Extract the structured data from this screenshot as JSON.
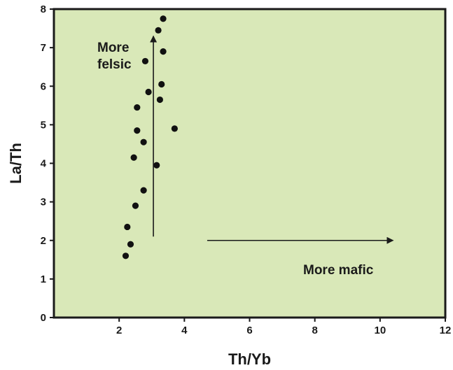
{
  "chart_data": {
    "type": "scatter",
    "title": "",
    "xlabel": "Th/Yb",
    "ylabel": "La/Th",
    "xlim": [
      0,
      12
    ],
    "ylim": [
      0,
      8
    ],
    "x_ticks": [
      2,
      4,
      6,
      8,
      10,
      12
    ],
    "y_ticks": [
      0,
      1,
      2,
      3,
      4,
      5,
      6,
      7,
      8
    ],
    "plot_background": "#d9e8b8",
    "point_color": "#111111",
    "grid": false,
    "legend": "none",
    "points": [
      {
        "x": 2.2,
        "y": 1.6
      },
      {
        "x": 2.35,
        "y": 1.9
      },
      {
        "x": 2.25,
        "y": 2.35
      },
      {
        "x": 2.5,
        "y": 2.9
      },
      {
        "x": 2.75,
        "y": 3.3
      },
      {
        "x": 3.15,
        "y": 3.95
      },
      {
        "x": 2.45,
        "y": 4.15
      },
      {
        "x": 2.75,
        "y": 4.55
      },
      {
        "x": 2.55,
        "y": 4.85
      },
      {
        "x": 3.7,
        "y": 4.9
      },
      {
        "x": 2.55,
        "y": 5.45
      },
      {
        "x": 2.9,
        "y": 5.85
      },
      {
        "x": 3.25,
        "y": 5.65
      },
      {
        "x": 3.3,
        "y": 6.05
      },
      {
        "x": 2.8,
        "y": 6.65
      },
      {
        "x": 3.35,
        "y": 6.9
      },
      {
        "x": 3.2,
        "y": 7.45
      },
      {
        "x": 3.35,
        "y": 7.75
      }
    ],
    "annotations": [
      {
        "text_lines": [
          "More",
          "felsic"
        ],
        "arrow": "up",
        "arrow_x": 3.05,
        "arrow_from_y": 2.1,
        "arrow_to_y": 7.3
      },
      {
        "text": "More mafic",
        "arrow": "right",
        "arrow_y": 2.0,
        "arrow_from_x": 4.7,
        "arrow_to_x": 10.4
      }
    ]
  }
}
